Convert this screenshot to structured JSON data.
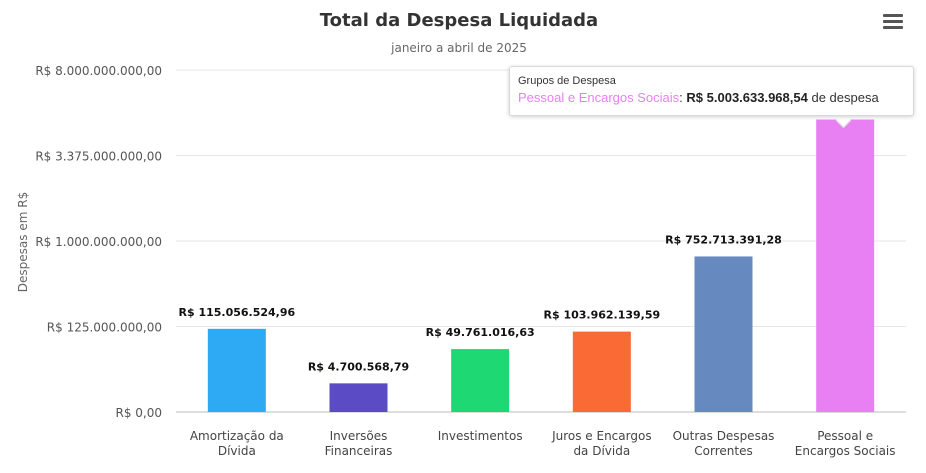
{
  "chart_data": {
    "type": "bar",
    "title": "Total da Despesa Liquidada",
    "subtitle": "janeiro a abril de 2025",
    "ylabel": "Despesas em R$",
    "xlabel": "",
    "yscale": "power",
    "ylim": [
      0,
      8000000000
    ],
    "yticks": [
      "R$ 0,00",
      "R$ 125.000.000,00",
      "R$ 1.000.000.000,00",
      "R$ 3.375.000.000,00",
      "R$ 8.000.000.000,00"
    ],
    "ytick_values": [
      0,
      125000000,
      1000000000,
      3375000000,
      8000000000
    ],
    "categories": [
      [
        "Amortização da",
        "Dívida"
      ],
      [
        "Inversões",
        "Financeiras"
      ],
      [
        "Investimentos"
      ],
      [
        "Juros e Encargos",
        "da Dívida"
      ],
      [
        "Outras Despesas",
        "Correntes"
      ],
      [
        "Pessoal e",
        "Encargos Sociais"
      ]
    ],
    "values": [
      115056524.96,
      4700568.79,
      49761016.63,
      103962139.59,
      752713391.28,
      5003633968.54
    ],
    "data_labels": [
      "R$ 115.056.524,96",
      "R$ 4.700.568,79",
      "R$ 49.761.016,63",
      "R$ 103.962.139,59",
      "R$ 752.713.391,28",
      ""
    ],
    "colors": [
      "#2eaaf4",
      "#5b4bc4",
      "#1ed873",
      "#f96a34",
      "#6689bf",
      "#e880f4"
    ],
    "grid": true,
    "legend": "none"
  },
  "tooltip": {
    "header": "Grupos de Despesa",
    "series_name": "Pessoal e Encargos Sociais",
    "separator": ":",
    "value": "R$ 5.003.633.968,54",
    "suffix": "de despesa"
  },
  "menu": {
    "icon": "hamburger-menu-icon"
  }
}
